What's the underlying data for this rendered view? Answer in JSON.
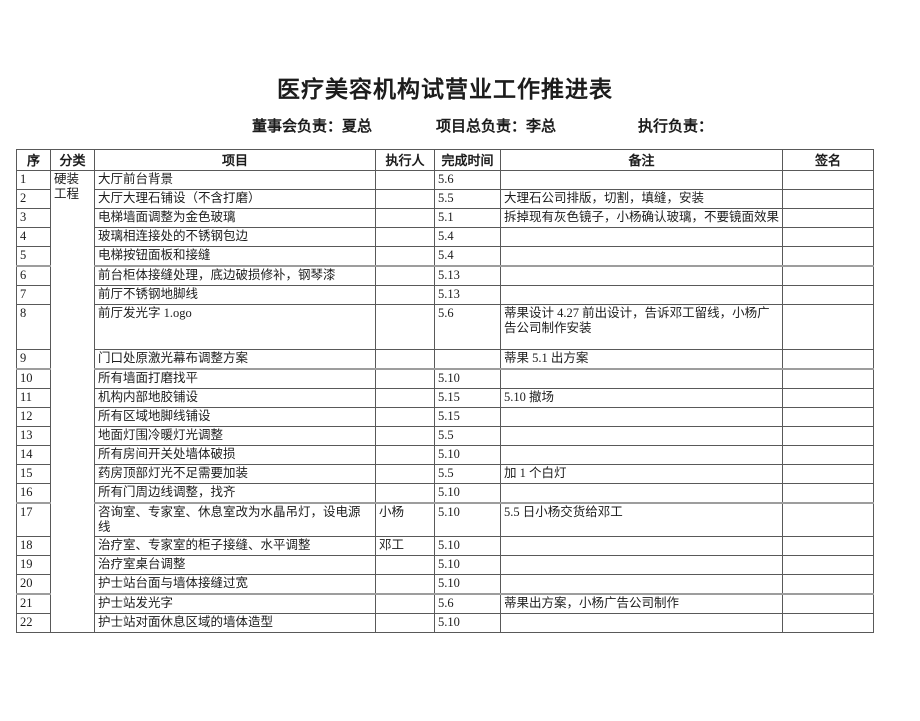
{
  "page": {
    "title": "医疗美容机构试营业工作推进表",
    "responsibility": {
      "board": "董事会负责：夏总",
      "project": "项目总负责：李总",
      "execution": "执行负责："
    }
  },
  "table": {
    "columns": [
      "序",
      "分类",
      "项目",
      "执行人",
      "完成时间",
      "备注",
      "签名"
    ],
    "category_label": "硬装工程",
    "rows": [
      {
        "no": "1",
        "project": "大厅前台背景",
        "executor": "",
        "time": "5.6",
        "remark": "",
        "sign": ""
      },
      {
        "no": "2",
        "project": "大厅大理石铺设（不含打磨）",
        "executor": "",
        "time": "5.5",
        "remark": "大理石公司排版，切割，填缝，安装",
        "sign": ""
      },
      {
        "no": "3",
        "project": "电梯墙面调整为金色玻璃",
        "executor": "",
        "time": "5.1",
        "remark": "拆掉现有灰色镜子，小杨确认玻璃，不要镜面效果",
        "sign": ""
      },
      {
        "no": "4",
        "project": "玻璃相连接处的不锈钢包边",
        "executor": "",
        "time": "5.4",
        "remark": "",
        "sign": ""
      },
      {
        "no": "5",
        "project": "电梯按钮面板和接缝",
        "executor": "",
        "time": "5.4",
        "remark": "",
        "sign": ""
      },
      {
        "no": "6",
        "project": "前台柜体接缝处理，底边破损修补，钢琴漆",
        "executor": "",
        "time": "5.13",
        "remark": "",
        "sign": ""
      },
      {
        "no": "7",
        "project": "前厅不锈钢地脚线",
        "executor": "",
        "time": "5.13",
        "remark": "",
        "sign": ""
      },
      {
        "no": "8",
        "project": "前厅发光字 1.ogo",
        "executor": "",
        "time": "5.6",
        "remark": "蒂果设计 4.27 前出设计，告诉邓工留线，小杨广告公司制作安装",
        "sign": ""
      },
      {
        "no": "9",
        "project": "门口处原激光幕布调整方案",
        "executor": "",
        "time": "",
        "remark": "蒂果 5.1 出方案",
        "sign": ""
      },
      {
        "no": "10",
        "project": "所有墙面打磨找平",
        "executor": "",
        "time": "5.10",
        "remark": "",
        "sign": ""
      },
      {
        "no": "11",
        "project": "机构内部地胶铺设",
        "executor": "",
        "time": "5.15",
        "remark": "5.10 撤场",
        "sign": ""
      },
      {
        "no": "12",
        "project": "所有区域地脚线铺设",
        "executor": "",
        "time": "5.15",
        "remark": "",
        "sign": ""
      },
      {
        "no": "13",
        "project": "地面灯围冷暖灯光调整",
        "executor": "",
        "time": "5.5",
        "remark": "",
        "sign": ""
      },
      {
        "no": "14",
        "project": "所有房间开关处墙体破损",
        "executor": "",
        "time": "5.10",
        "remark": "",
        "sign": ""
      },
      {
        "no": "15",
        "project": "药房顶部灯光不足需要加装",
        "executor": "",
        "time": "5.5",
        "remark": "加 1 个白灯",
        "sign": ""
      },
      {
        "no": "16",
        "project": "所有门周边线调整，找齐",
        "executor": "",
        "time": "5.10",
        "remark": "",
        "sign": ""
      },
      {
        "no": "17",
        "project": "咨询室、专家室、休息室改为水晶吊灯，设电源线",
        "executor": "小杨",
        "time": "5.10",
        "remark": "5.5 日小杨交货给邓工",
        "sign": ""
      },
      {
        "no": "18",
        "project": "治疗室、专家室的柜子接缝、水平调整",
        "executor": "邓工",
        "time": "5.10",
        "remark": "",
        "sign": ""
      },
      {
        "no": "19",
        "project": "治疗室桌台调整",
        "executor": "",
        "time": "5.10",
        "remark": "",
        "sign": ""
      },
      {
        "no": "20",
        "project": "护士站台面与墙体接缝过宽",
        "executor": "",
        "time": "5.10",
        "remark": "",
        "sign": ""
      },
      {
        "no": "21",
        "project": "护士站发光字",
        "executor": "",
        "time": "5.6",
        "remark": "蒂果出方案，小杨广告公司制作",
        "sign": ""
      },
      {
        "no": "22",
        "project": "护士站对面休息区域的墙体造型",
        "executor": "",
        "time": "5.10",
        "remark": "",
        "sign": ""
      }
    ]
  }
}
